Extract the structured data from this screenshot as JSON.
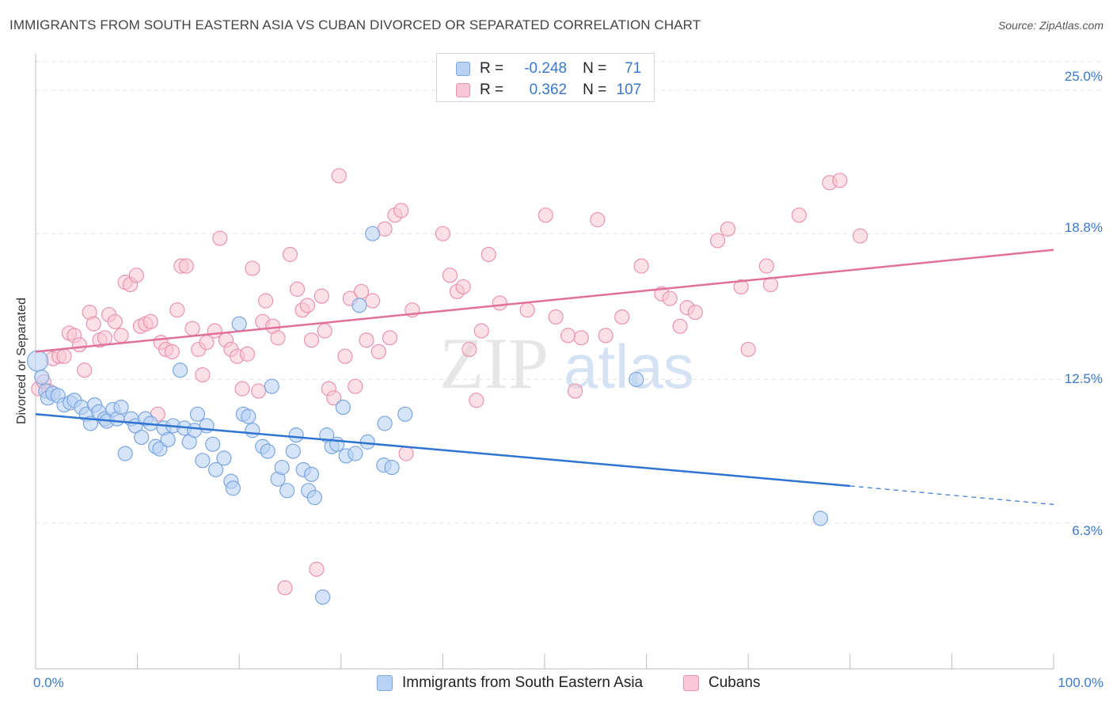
{
  "header": {
    "title": "IMMIGRANTS FROM SOUTH EASTERN ASIA VS CUBAN DIVORCED OR SEPARATED CORRELATION CHART",
    "source": "Source: ZipAtlas.com"
  },
  "legend": {
    "rows": [
      {
        "r_label": "R =",
        "r_value": "-0.248",
        "n_label": "N =",
        "n_value": "71"
      },
      {
        "r_label": "R =",
        "r_value": "0.362",
        "n_label": "N =",
        "n_value": "107"
      }
    ]
  },
  "bottom_legend": {
    "series_a": "Immigrants from South Eastern Asia",
    "series_b": "Cubans"
  },
  "colors": {
    "blue_fill": "#b9d2f3",
    "blue_stroke": "#7ba6e0",
    "blue_line": "#2f74d0",
    "pink_fill": "#f8c6d6",
    "pink_stroke": "#ea93ae",
    "pink_line": "#e0709a",
    "grid": "#e3e3e3",
    "tick_label": "#3a78c9"
  },
  "watermark": {
    "zip": "ZIP",
    "atlas": "atlas"
  },
  "chart_data": {
    "type": "scatter",
    "xlabel": "",
    "ylabel": "Divorced or Separated",
    "x_tick_labels": [
      "0.0%",
      "100.0%"
    ],
    "y_tick_labels": [
      "6.3%",
      "12.5%",
      "18.8%",
      "25.0%"
    ],
    "y_ticks": [
      6.3,
      12.5,
      18.8,
      25.0
    ],
    "xlim": [
      0,
      100
    ],
    "ylim": [
      0,
      26.5
    ],
    "grid": true,
    "series": [
      {
        "name": "Immigrants from South Eastern Asia",
        "trend": {
          "x0": 0,
          "y0": 11.0,
          "x1": 80,
          "y1": 7.9,
          "dash_to_x": 100,
          "dash_to_y": 7.1
        },
        "points": [
          [
            0.2,
            13.3
          ],
          [
            0.6,
            12.6
          ],
          [
            1.0,
            12.0
          ],
          [
            1.2,
            11.7
          ],
          [
            1.7,
            11.9
          ],
          [
            2.2,
            11.8
          ],
          [
            2.8,
            11.4
          ],
          [
            3.4,
            11.5
          ],
          [
            3.8,
            11.6
          ],
          [
            4.5,
            11.3
          ],
          [
            5.0,
            11.0
          ],
          [
            5.4,
            10.6
          ],
          [
            5.8,
            11.4
          ],
          [
            6.2,
            11.1
          ],
          [
            6.8,
            10.8
          ],
          [
            7.0,
            10.7
          ],
          [
            7.6,
            11.2
          ],
          [
            8.0,
            10.8
          ],
          [
            8.4,
            11.3
          ],
          [
            8.8,
            9.3
          ],
          [
            9.4,
            10.8
          ],
          [
            9.8,
            10.5
          ],
          [
            10.4,
            10.0
          ],
          [
            10.8,
            10.8
          ],
          [
            11.3,
            10.6
          ],
          [
            11.8,
            9.6
          ],
          [
            12.2,
            9.5
          ],
          [
            12.6,
            10.4
          ],
          [
            13.0,
            9.9
          ],
          [
            13.5,
            10.5
          ],
          [
            14.2,
            12.9
          ],
          [
            14.6,
            10.4
          ],
          [
            15.1,
            9.8
          ],
          [
            15.6,
            10.3
          ],
          [
            15.9,
            11.0
          ],
          [
            16.4,
            9.0
          ],
          [
            16.8,
            10.5
          ],
          [
            17.4,
            9.7
          ],
          [
            17.7,
            8.6
          ],
          [
            18.5,
            9.1
          ],
          [
            19.2,
            8.1
          ],
          [
            19.4,
            7.8
          ],
          [
            20.0,
            14.9
          ],
          [
            20.4,
            11.0
          ],
          [
            20.9,
            10.9
          ],
          [
            21.3,
            10.3
          ],
          [
            22.3,
            9.6
          ],
          [
            22.8,
            9.4
          ],
          [
            23.2,
            12.2
          ],
          [
            23.8,
            8.2
          ],
          [
            24.2,
            8.7
          ],
          [
            24.7,
            7.7
          ],
          [
            25.3,
            9.4
          ],
          [
            25.6,
            10.1
          ],
          [
            26.3,
            8.6
          ],
          [
            26.8,
            7.7
          ],
          [
            27.1,
            8.4
          ],
          [
            27.4,
            7.4
          ],
          [
            28.2,
            3.1
          ],
          [
            28.6,
            10.1
          ],
          [
            29.1,
            9.6
          ],
          [
            29.6,
            9.7
          ],
          [
            30.2,
            11.3
          ],
          [
            30.5,
            9.2
          ],
          [
            31.4,
            9.3
          ],
          [
            31.8,
            15.7
          ],
          [
            32.6,
            9.8
          ],
          [
            33.1,
            18.8
          ],
          [
            34.2,
            8.8
          ],
          [
            34.3,
            10.6
          ],
          [
            35.0,
            8.7
          ],
          [
            36.3,
            11.0
          ],
          [
            59.0,
            12.5
          ],
          [
            77.1,
            6.5
          ]
        ]
      },
      {
        "name": "Cubans",
        "trend": {
          "x0": 0,
          "y0": 13.7,
          "x1": 100,
          "y1": 18.1
        },
        "points": [
          [
            0.3,
            12.1
          ],
          [
            0.8,
            12.4
          ],
          [
            1.3,
            12.0
          ],
          [
            1.7,
            13.4
          ],
          [
            2.3,
            13.5
          ],
          [
            2.8,
            13.5
          ],
          [
            3.3,
            14.5
          ],
          [
            3.8,
            14.4
          ],
          [
            4.3,
            14.0
          ],
          [
            4.8,
            12.9
          ],
          [
            5.3,
            15.4
          ],
          [
            5.7,
            14.9
          ],
          [
            6.3,
            14.2
          ],
          [
            6.8,
            14.3
          ],
          [
            7.2,
            15.3
          ],
          [
            7.8,
            15.0
          ],
          [
            8.4,
            14.4
          ],
          [
            8.8,
            16.7
          ],
          [
            9.3,
            16.6
          ],
          [
            9.9,
            17.0
          ],
          [
            10.3,
            14.8
          ],
          [
            10.8,
            14.9
          ],
          [
            11.3,
            15.0
          ],
          [
            12.0,
            11.0
          ],
          [
            12.3,
            14.1
          ],
          [
            12.8,
            13.8
          ],
          [
            13.4,
            13.7
          ],
          [
            13.9,
            15.5
          ],
          [
            14.3,
            17.4
          ],
          [
            14.8,
            17.4
          ],
          [
            15.4,
            14.7
          ],
          [
            16.0,
            13.8
          ],
          [
            16.4,
            12.7
          ],
          [
            16.8,
            14.1
          ],
          [
            17.6,
            14.6
          ],
          [
            18.1,
            18.6
          ],
          [
            18.7,
            14.2
          ],
          [
            19.2,
            13.8
          ],
          [
            19.8,
            13.5
          ],
          [
            20.3,
            12.1
          ],
          [
            20.8,
            13.6
          ],
          [
            21.3,
            17.3
          ],
          [
            21.9,
            12.0
          ],
          [
            22.3,
            15.0
          ],
          [
            22.6,
            15.9
          ],
          [
            23.3,
            14.8
          ],
          [
            23.8,
            14.3
          ],
          [
            24.5,
            3.5
          ],
          [
            25.0,
            17.9
          ],
          [
            25.7,
            16.4
          ],
          [
            26.2,
            15.5
          ],
          [
            26.7,
            15.7
          ],
          [
            27.1,
            14.2
          ],
          [
            27.6,
            4.3
          ],
          [
            28.1,
            16.1
          ],
          [
            28.4,
            14.6
          ],
          [
            28.8,
            12.1
          ],
          [
            29.3,
            11.7
          ],
          [
            29.8,
            21.3
          ],
          [
            30.4,
            13.5
          ],
          [
            30.9,
            16.0
          ],
          [
            31.4,
            12.2
          ],
          [
            32.0,
            16.3
          ],
          [
            32.5,
            14.2
          ],
          [
            33.1,
            15.9
          ],
          [
            33.7,
            13.7
          ],
          [
            34.3,
            19.0
          ],
          [
            34.8,
            14.3
          ],
          [
            35.3,
            19.6
          ],
          [
            35.9,
            19.8
          ],
          [
            36.4,
            9.3
          ],
          [
            37.0,
            15.5
          ],
          [
            40.0,
            18.8
          ],
          [
            40.7,
            17.0
          ],
          [
            41.4,
            16.3
          ],
          [
            42.0,
            16.5
          ],
          [
            42.6,
            13.8
          ],
          [
            43.3,
            11.6
          ],
          [
            43.8,
            14.6
          ],
          [
            44.5,
            17.9
          ],
          [
            45.6,
            15.8
          ],
          [
            48.3,
            15.5
          ],
          [
            50.1,
            19.6
          ],
          [
            51.1,
            15.2
          ],
          [
            52.3,
            14.4
          ],
          [
            53.0,
            12.0
          ],
          [
            53.6,
            14.3
          ],
          [
            55.2,
            19.4
          ],
          [
            56.0,
            14.4
          ],
          [
            57.6,
            15.2
          ],
          [
            59.5,
            17.4
          ],
          [
            61.5,
            16.2
          ],
          [
            62.3,
            16.0
          ],
          [
            63.3,
            14.8
          ],
          [
            64.0,
            15.6
          ],
          [
            64.8,
            15.4
          ],
          [
            67.0,
            18.5
          ],
          [
            68.0,
            19.0
          ],
          [
            69.3,
            16.5
          ],
          [
            70.0,
            13.8
          ],
          [
            71.8,
            17.4
          ],
          [
            72.2,
            16.6
          ],
          [
            75.0,
            19.6
          ],
          [
            78.0,
            21.0
          ],
          [
            79.0,
            21.1
          ],
          [
            81.0,
            18.7
          ]
        ]
      }
    ]
  }
}
